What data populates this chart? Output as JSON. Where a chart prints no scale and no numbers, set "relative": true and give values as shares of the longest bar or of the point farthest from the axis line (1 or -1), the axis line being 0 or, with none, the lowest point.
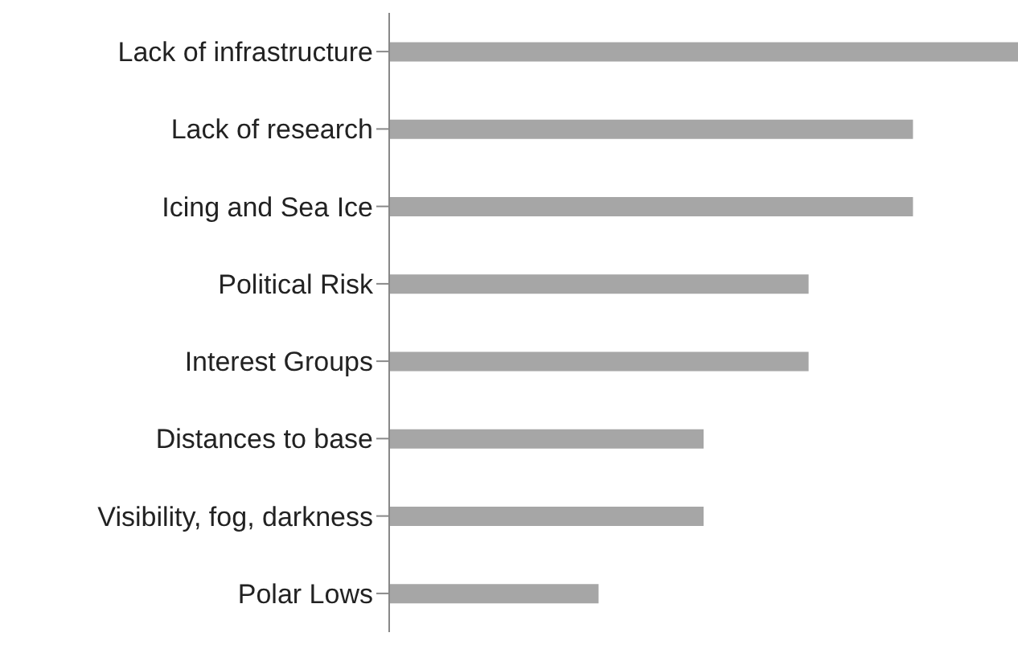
{
  "chart_data": {
    "type": "bar",
    "orientation": "horizontal",
    "relative": true,
    "categories": [
      "Lack of infrastructure",
      "Lack of research",
      "Icing and Sea Ice",
      "Political Risk",
      "Interest Groups",
      "Distances to base",
      "Visibility, fog, darkness",
      "Polar Lows"
    ],
    "values": [
      1,
      0.833,
      0.833,
      0.667,
      0.667,
      0.5,
      0.5,
      0.333
    ],
    "color": "#a6a6a6",
    "grid": false,
    "legend": false
  }
}
